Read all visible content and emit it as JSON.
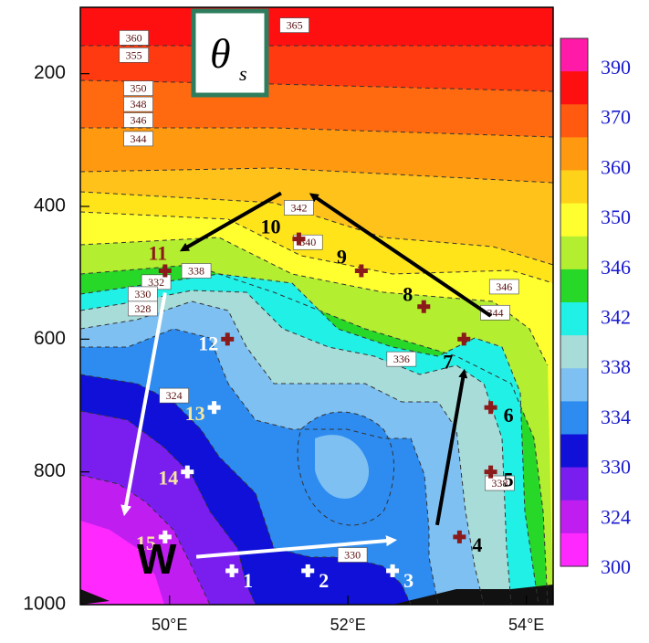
{
  "chart_data": {
    "type": "contour",
    "title": "θ",
    "title_subscript": "s",
    "xlim": [
      49.0,
      54.3
    ],
    "ylim": [
      1000,
      100
    ],
    "y_ticks": [
      200,
      400,
      600,
      800,
      1000
    ],
    "x_ticks": [
      {
        "value": 50,
        "label": "50°E"
      },
      {
        "value": 52,
        "label": "52°E"
      },
      {
        "value": 54,
        "label": "54°E"
      }
    ],
    "colorbar": {
      "labels": [
        "390",
        "370",
        "360",
        "350",
        "346",
        "342",
        "338",
        "334",
        "330",
        "324",
        "300"
      ],
      "colors": [
        "#ff1aa8",
        "#ff1010",
        "#ff5a10",
        "#ff9a10",
        "#ffd21a",
        "#ffff30",
        "#b4ee30",
        "#28d828",
        "#20f0e6",
        "#a8dcd8",
        "#7ec0f2",
        "#2e8cf0",
        "#1010d8",
        "#7a1ef0",
        "#c01ef0",
        "#ff28ff"
      ]
    },
    "contour_labels": [
      {
        "text": "365",
        "x": 51.4,
        "y": 127
      },
      {
        "text": "360",
        "x": 49.6,
        "y": 146
      },
      {
        "text": "355",
        "x": 49.6,
        "y": 172
      },
      {
        "text": "350",
        "x": 49.65,
        "y": 222
      },
      {
        "text": "348",
        "x": 49.65,
        "y": 246
      },
      {
        "text": "346",
        "x": 49.65,
        "y": 270
      },
      {
        "text": "344",
        "x": 49.65,
        "y": 298
      },
      {
        "text": "342",
        "x": 51.45,
        "y": 402
      },
      {
        "text": "340",
        "x": 51.55,
        "y": 454
      },
      {
        "text": "338",
        "x": 50.3,
        "y": 497
      },
      {
        "text": "332",
        "x": 49.85,
        "y": 514
      },
      {
        "text": "330",
        "x": 49.7,
        "y": 532
      },
      {
        "text": "328",
        "x": 49.7,
        "y": 554
      },
      {
        "text": "336",
        "x": 52.6,
        "y": 630
      },
      {
        "text": "324",
        "x": 50.05,
        "y": 685
      },
      {
        "text": "346",
        "x": 53.75,
        "y": 521
      },
      {
        "text": "344",
        "x": 53.65,
        "y": 560
      },
      {
        "text": "338",
        "x": 53.7,
        "y": 817
      },
      {
        "text": "330",
        "x": 52.05,
        "y": 925
      }
    ],
    "points": [
      {
        "label": "1",
        "x": 50.7,
        "y": 949,
        "kind": "white"
      },
      {
        "label": "2",
        "x": 51.55,
        "y": 949,
        "kind": "white"
      },
      {
        "label": "3",
        "x": 52.5,
        "y": 949,
        "kind": "white"
      },
      {
        "label": "4",
        "x": 53.25,
        "y": 898,
        "kind": "dark"
      },
      {
        "label": "5",
        "x": 53.6,
        "y": 800,
        "kind": "dark"
      },
      {
        "label": "6",
        "x": 53.6,
        "y": 703,
        "kind": "dark"
      },
      {
        "label": "7",
        "x": 53.3,
        "y": 600,
        "kind": "dark"
      },
      {
        "label": "8",
        "x": 52.85,
        "y": 551,
        "kind": "dark"
      },
      {
        "label": "9",
        "x": 52.15,
        "y": 497,
        "kind": "dark"
      },
      {
        "label": "10",
        "x": 51.45,
        "y": 449,
        "kind": "dark"
      },
      {
        "label": "11",
        "x": 49.95,
        "y": 497,
        "kind": "dark"
      },
      {
        "label": "12",
        "x": 50.65,
        "y": 600,
        "kind": "dark"
      },
      {
        "label": "13",
        "x": 50.5,
        "y": 703,
        "kind": "white"
      },
      {
        "label": "14",
        "x": 50.2,
        "y": 800,
        "kind": "white"
      },
      {
        "label": "15",
        "x": 49.95,
        "y": 898,
        "kind": "white"
      }
    ],
    "arrows": [
      {
        "color": "black",
        "from": [
          53.0,
          880
        ],
        "to": [
          53.3,
          650
        ]
      },
      {
        "color": "black",
        "from": [
          53.6,
          565
        ],
        "to": [
          51.6,
          383
        ]
      },
      {
        "color": "black",
        "from": [
          51.25,
          380
        ],
        "to": [
          50.15,
          465
        ]
      },
      {
        "color": "white",
        "from": [
          49.95,
          530
        ],
        "to": [
          49.5,
          860
        ]
      },
      {
        "color": "white",
        "from": [
          50.3,
          928
        ],
        "to": [
          52.5,
          903
        ]
      }
    ],
    "annotation": "W"
  }
}
